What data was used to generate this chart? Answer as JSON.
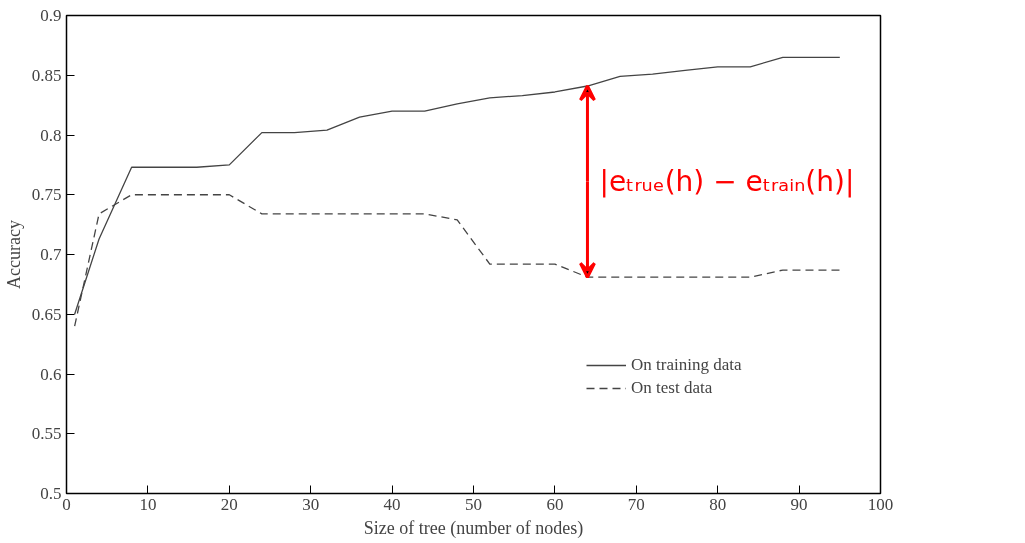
{
  "chart_data": {
    "type": "line",
    "xlabel": "Size of tree (number of nodes)",
    "ylabel": "Accuracy",
    "xlim": [
      0,
      100
    ],
    "xticks": [
      0,
      10,
      20,
      30,
      40,
      50,
      60,
      70,
      80,
      90,
      100
    ],
    "ylim": [
      0.5,
      0.9
    ],
    "yticks": [
      0.5,
      0.55,
      0.6,
      0.65,
      0.7,
      0.75,
      0.8,
      0.85,
      0.9
    ],
    "grid": false,
    "legend": "bottom right",
    "series": [
      {
        "name": "On training data",
        "color": "#444444",
        "line_style": "solid",
        "x": [
          1,
          4,
          8,
          16,
          20,
          24,
          28,
          32,
          36,
          40,
          44,
          48,
          52,
          56,
          60,
          64,
          68,
          72,
          76,
          80,
          84,
          88,
          95
        ],
        "values": [
          0.65,
          0.713,
          0.773,
          0.773,
          0.775,
          0.802,
          0.802,
          0.804,
          0.815,
          0.82,
          0.82,
          0.826,
          0.831,
          0.833,
          0.836,
          0.841,
          0.849,
          0.851,
          0.854,
          0.857,
          0.857,
          0.865,
          0.865
        ]
      },
      {
        "name": "On test data",
        "color": "#444444",
        "line_style": "dashed",
        "x": [
          1,
          4,
          8,
          20,
          24,
          44,
          48,
          52,
          60,
          64,
          84,
          88,
          95
        ],
        "values": [
          0.64,
          0.734,
          0.75,
          0.75,
          0.734,
          0.734,
          0.729,
          0.692,
          0.692,
          0.681,
          0.681,
          0.687,
          0.687
        ]
      }
    ],
    "annotations": [
      {
        "text": "|eₜᵣᵤₑ(h) − eₜᵣₐᵢₙ(h)|",
        "x": 64,
        "y": 0.841
      }
    ]
  }
}
